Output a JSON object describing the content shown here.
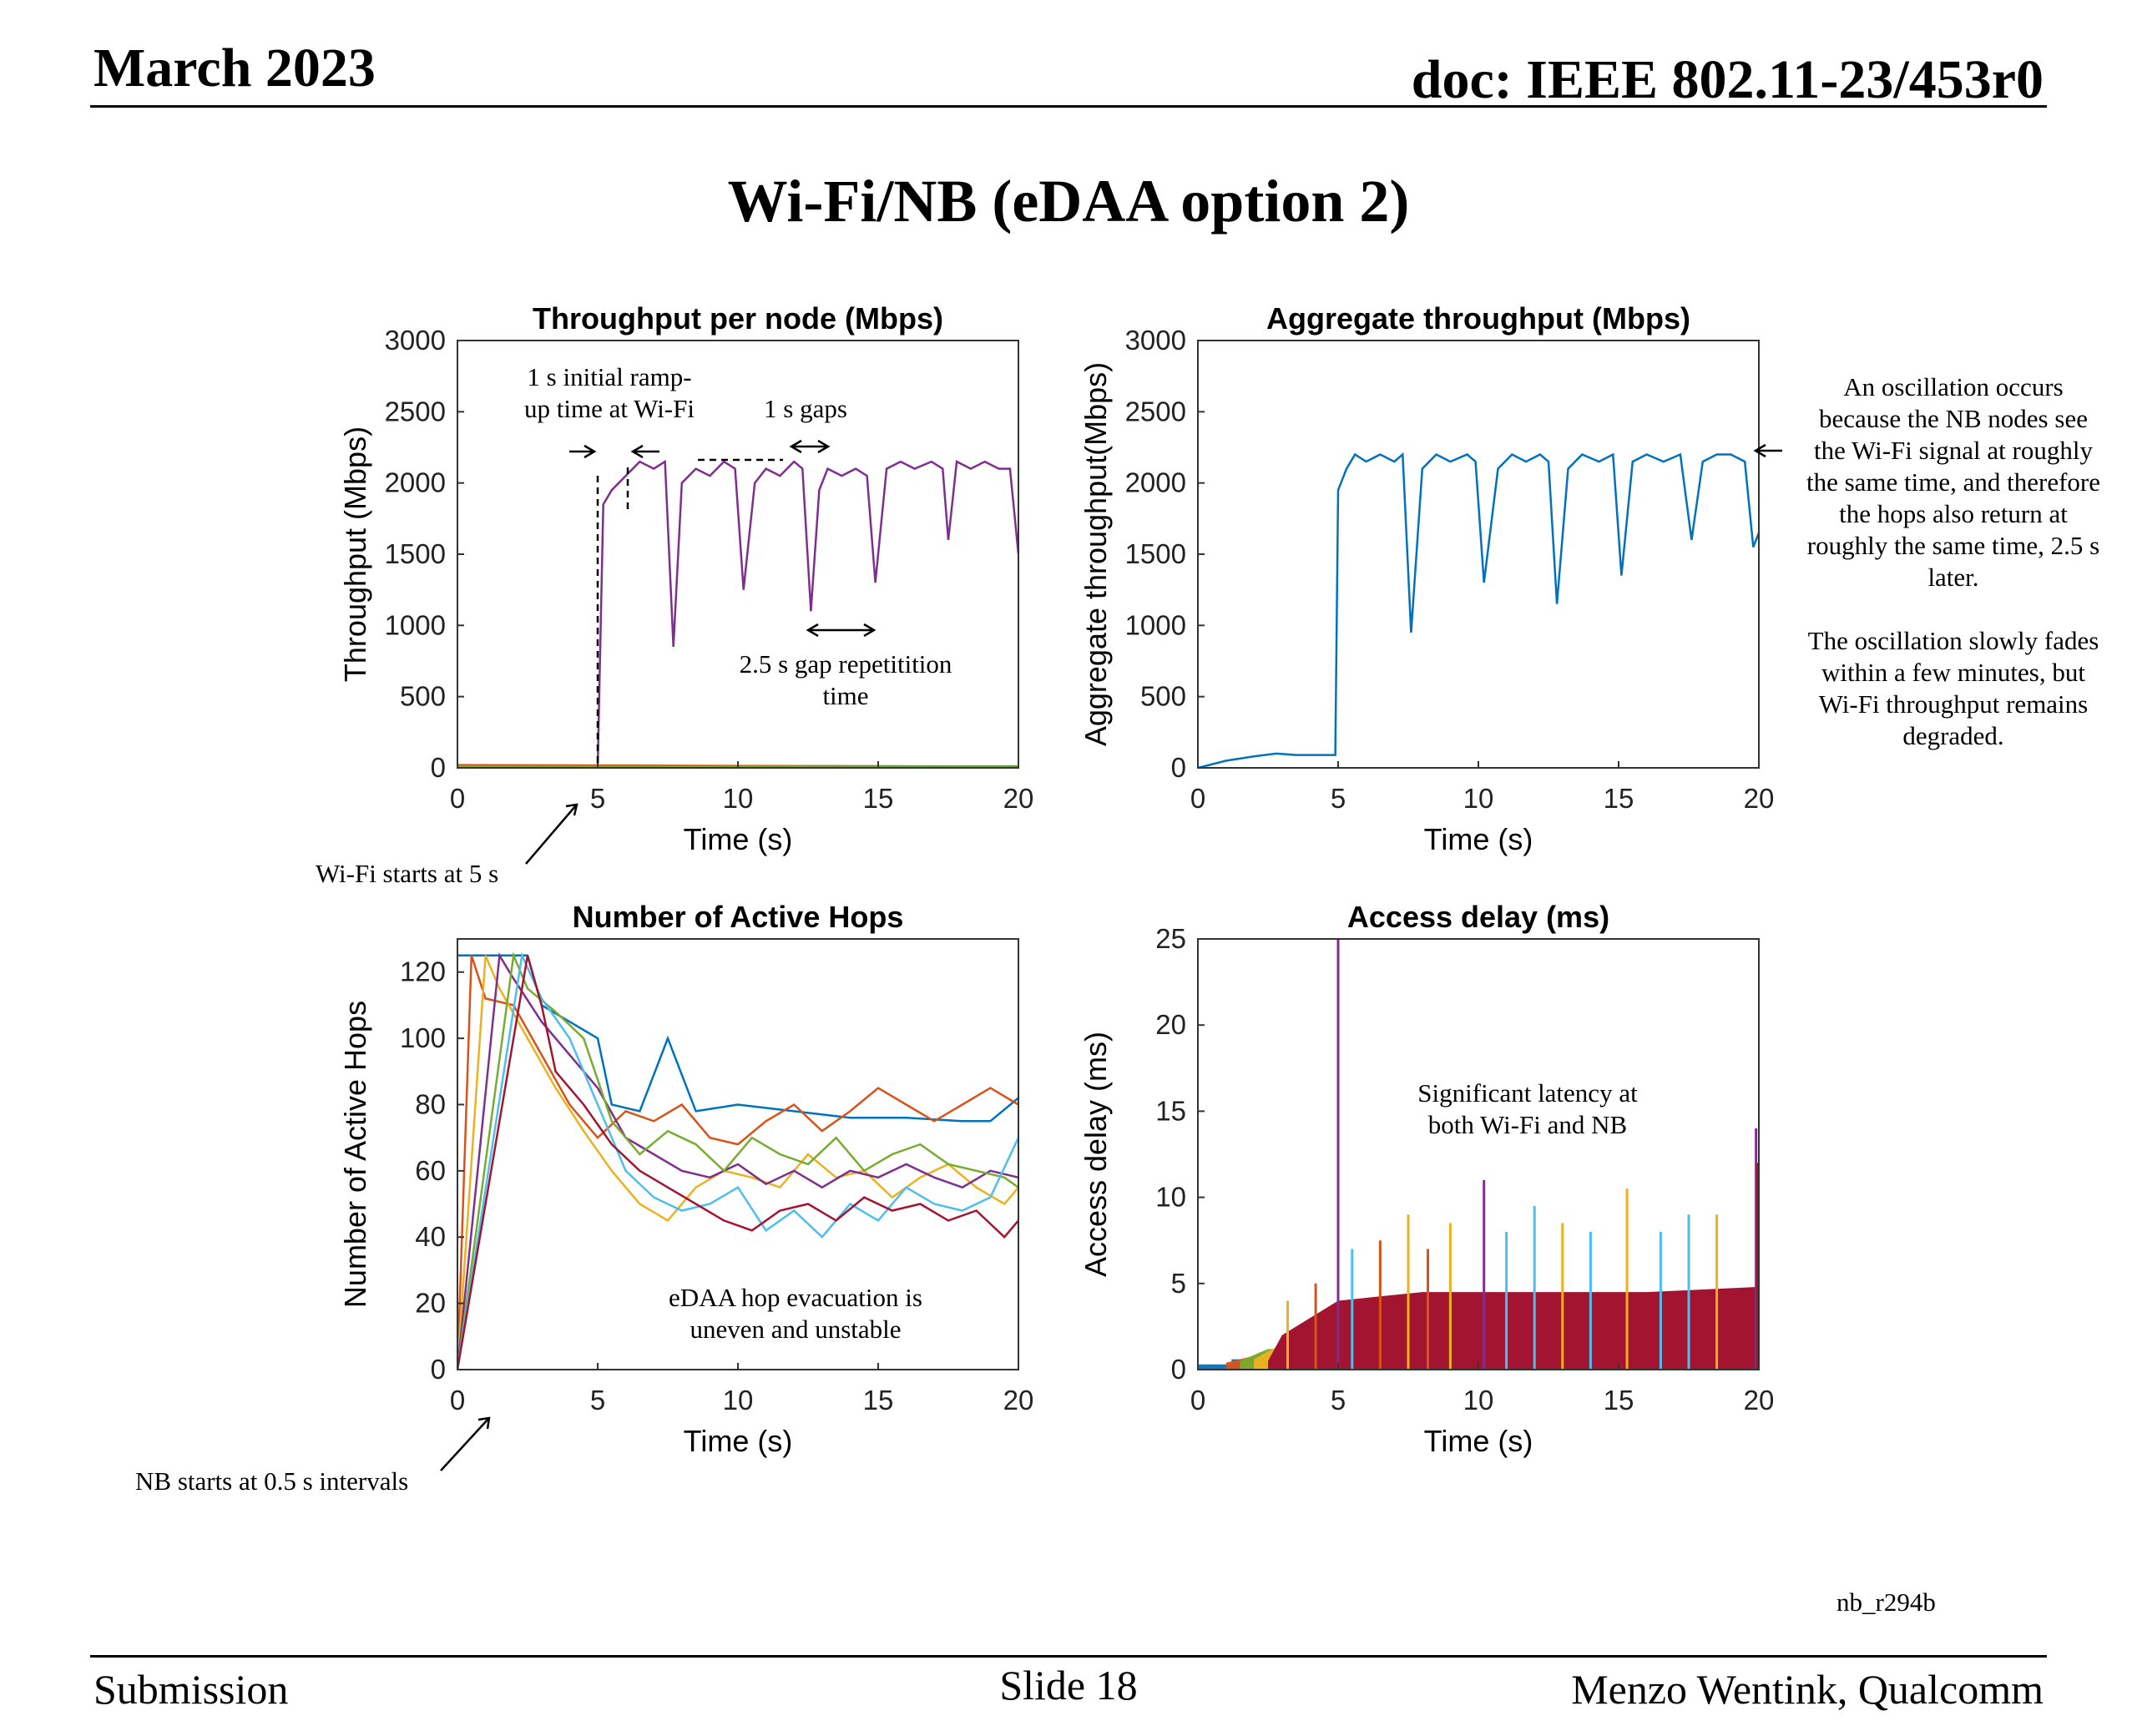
{
  "header": {
    "date": "March 2023",
    "doc": "doc: IEEE 802.11-23/453r0"
  },
  "slide_title": "Wi-Fi/NB (eDAA option 2)",
  "footer": {
    "left": "Submission",
    "center": "Slide 18",
    "right": "Menzo Wentink, Qualcomm"
  },
  "figure_tag": "nb_r294b",
  "colors": [
    "#0072BD",
    "#D95319",
    "#EDB120",
    "#7E2F8E",
    "#77AC30",
    "#4DBEEE",
    "#A2142F"
  ],
  "annotations": {
    "ramp": [
      "1 s initial ramp-",
      "up time at Wi-Fi"
    ],
    "gaps": "1 s gaps",
    "repetition": [
      "2.5 s gap repetitition",
      "time"
    ],
    "wifi_start": "Wi-Fi starts at 5 s",
    "nb_start": "NB starts at 0.5 s intervals",
    "evacuation": [
      "eDAA hop evacuation is",
      "uneven and unstable"
    ],
    "latency": [
      "Significant latency at",
      "both Wi-Fi and NB"
    ],
    "oscillation": [
      "An oscillation occurs",
      "because the NB nodes see",
      "the Wi-Fi signal at roughly",
      "the same time, and therefore",
      "the hops also return at",
      "roughly the same time, 2.5 s",
      "later.",
      "",
      "The oscillation slowly fades",
      "within a few minutes, but",
      "Wi-Fi throughput remains",
      "degraded."
    ]
  },
  "chart_data": [
    {
      "type": "line",
      "title": "Throughput per node (Mbps)",
      "xlabel": "Time (s)",
      "ylabel": "Throughput (Mbps)",
      "xlim": [
        0,
        20
      ],
      "ylim": [
        0,
        3000
      ],
      "xticks": [
        0,
        5,
        10,
        15,
        20
      ],
      "yticks": [
        0,
        500,
        1000,
        1500,
        2000,
        2500,
        3000
      ],
      "series": [
        {
          "color": "#7E2F8E",
          "x": [
            0,
            4.9,
            5.0,
            5.2,
            5.5,
            6.0,
            6.5,
            7.0,
            7.4,
            7.7,
            8.0,
            8.5,
            9.0,
            9.5,
            9.9,
            10.2,
            10.6,
            11.0,
            11.5,
            12.0,
            12.3,
            12.6,
            12.9,
            13.2,
            13.7,
            14.2,
            14.6,
            14.9,
            15.3,
            15.8,
            16.3,
            16.9,
            17.3,
            17.5,
            17.8,
            18.3,
            18.8,
            19.3,
            19.7,
            20.0
          ],
          "y": [
            0,
            0,
            0,
            1850,
            1950,
            2050,
            2150,
            2100,
            2150,
            850,
            2000,
            2100,
            2050,
            2150,
            2100,
            1250,
            2000,
            2100,
            2050,
            2150,
            2100,
            1100,
            1950,
            2100,
            2050,
            2100,
            2050,
            1300,
            2100,
            2150,
            2100,
            2150,
            2100,
            1600,
            2150,
            2100,
            2150,
            2100,
            2100,
            1500
          ]
        },
        {
          "color": "#0072BD",
          "x": [
            0,
            20
          ],
          "y": [
            15,
            10
          ]
        },
        {
          "color": "#D95319",
          "x": [
            0,
            20
          ],
          "y": [
            20,
            8
          ]
        },
        {
          "color": "#77AC30",
          "x": [
            0,
            20
          ],
          "y": [
            10,
            6
          ]
        }
      ]
    },
    {
      "type": "line",
      "title": "Aggregate throughput (Mbps)",
      "xlabel": "Time (s)",
      "ylabel": "Aggregate throughput(Mbps)",
      "xlim": [
        0,
        20
      ],
      "ylim": [
        0,
        3000
      ],
      "xticks": [
        0,
        5,
        10,
        15,
        20
      ],
      "yticks": [
        0,
        500,
        1000,
        1500,
        2000,
        2500,
        3000
      ],
      "series": [
        {
          "color": "#0072BD",
          "x": [
            0,
            1,
            2,
            2.8,
            3.5,
            4.9,
            5.0,
            5.3,
            5.6,
            6.0,
            6.5,
            7.0,
            7.3,
            7.6,
            8.0,
            8.5,
            9.0,
            9.6,
            9.9,
            10.2,
            10.7,
            11.2,
            11.7,
            12.2,
            12.5,
            12.8,
            13.2,
            13.7,
            14.3,
            14.8,
            15.1,
            15.5,
            16.0,
            16.6,
            17.2,
            17.6,
            18.0,
            18.5,
            19.0,
            19.5,
            19.8,
            20.0
          ],
          "y": [
            0,
            50,
            80,
            100,
            90,
            90,
            1950,
            2100,
            2200,
            2150,
            2200,
            2150,
            2200,
            950,
            2100,
            2200,
            2150,
            2200,
            2150,
            1300,
            2100,
            2200,
            2150,
            2200,
            2150,
            1150,
            2100,
            2200,
            2150,
            2200,
            1350,
            2150,
            2200,
            2150,
            2200,
            1600,
            2150,
            2200,
            2200,
            2150,
            1550,
            1650
          ]
        }
      ]
    },
    {
      "type": "line",
      "title": "Number of Active Hops",
      "xlabel": "Time (s)",
      "ylabel": "Number of Active Hops",
      "xlim": [
        0,
        20
      ],
      "ylim": [
        0,
        130
      ],
      "xticks": [
        0,
        5,
        10,
        15,
        20
      ],
      "yticks": [
        0,
        20,
        40,
        60,
        80,
        100,
        120
      ],
      "series": [
        {
          "color": "#0072BD",
          "x": [
            0,
            2.5,
            3,
            4,
            5,
            5.5,
            6.5,
            7.5,
            8.5,
            10,
            12,
            14,
            16,
            18,
            19,
            20
          ],
          "y": [
            125,
            125,
            110,
            105,
            100,
            80,
            78,
            100,
            78,
            80,
            78,
            76,
            76,
            75,
            75,
            82
          ]
        },
        {
          "color": "#D95319",
          "x": [
            0,
            0.5,
            1,
            2,
            3,
            4,
            5,
            6,
            7,
            8,
            9,
            10,
            11,
            12,
            13,
            14,
            15,
            16,
            17,
            18,
            19,
            20
          ],
          "y": [
            0,
            125,
            112,
            110,
            95,
            80,
            70,
            78,
            75,
            80,
            70,
            68,
            75,
            80,
            72,
            78,
            85,
            80,
            75,
            80,
            85,
            80
          ]
        },
        {
          "color": "#EDB120",
          "x": [
            0,
            1,
            1.5,
            2.5,
            3.5,
            4.5,
            5.5,
            6.5,
            7.5,
            8.5,
            9.5,
            10.5,
            11.5,
            12.5,
            13.5,
            14.5,
            15.5,
            16.5,
            17.5,
            18.5,
            19.5,
            20
          ],
          "y": [
            0,
            125,
            115,
            100,
            85,
            72,
            60,
            50,
            45,
            55,
            60,
            58,
            55,
            65,
            58,
            60,
            52,
            58,
            62,
            55,
            50,
            55
          ]
        },
        {
          "color": "#7E2F8E",
          "x": [
            0,
            1.5,
            2,
            3,
            4,
            5,
            6,
            7,
            8,
            9,
            10,
            11,
            12,
            13,
            14,
            15,
            16,
            17,
            18,
            19,
            20
          ],
          "y": [
            0,
            125,
            118,
            105,
            95,
            85,
            70,
            65,
            60,
            58,
            62,
            56,
            60,
            55,
            60,
            58,
            62,
            58,
            55,
            60,
            58
          ]
        },
        {
          "color": "#77AC30",
          "x": [
            0,
            2,
            2.5,
            3.5,
            4.5,
            5.5,
            6.5,
            7.5,
            8.5,
            9.5,
            10.5,
            11.5,
            12.5,
            13.5,
            14.5,
            15.5,
            16.5,
            17.5,
            18.5,
            19.5,
            20
          ],
          "y": [
            0,
            125,
            115,
            108,
            100,
            75,
            65,
            72,
            68,
            60,
            70,
            65,
            62,
            70,
            60,
            65,
            68,
            62,
            60,
            58,
            55
          ]
        },
        {
          "color": "#4DBEEE",
          "x": [
            0,
            2.3,
            3,
            4,
            5,
            6,
            7,
            8,
            9,
            10,
            11,
            12,
            13,
            14,
            15,
            16,
            17,
            18,
            19,
            20
          ],
          "y": [
            0,
            125,
            112,
            100,
            80,
            60,
            52,
            48,
            50,
            55,
            42,
            48,
            40,
            50,
            45,
            55,
            50,
            48,
            52,
            70
          ]
        },
        {
          "color": "#A2142F",
          "x": [
            0,
            2.5,
            3,
            3.5,
            4.5,
            5.5,
            6.5,
            7.5,
            8.5,
            9.5,
            10.5,
            11.5,
            12.5,
            13.5,
            14.5,
            15.5,
            16.5,
            17.5,
            18.5,
            19.5,
            20
          ],
          "y": [
            0,
            125,
            110,
            90,
            80,
            68,
            60,
            55,
            50,
            45,
            42,
            48,
            50,
            45,
            52,
            48,
            50,
            45,
            48,
            40,
            45
          ]
        }
      ]
    },
    {
      "type": "line",
      "title": "Access delay (ms)",
      "xlabel": "Time (s)",
      "ylabel": "Access delay (ms)",
      "xlim": [
        0,
        20
      ],
      "ylim": [
        0,
        25
      ],
      "xticks": [
        0,
        5,
        10,
        15,
        20
      ],
      "yticks": [
        0,
        5,
        10,
        15,
        20,
        25
      ],
      "bands": [
        {
          "color": "#0072BD",
          "x": [
            0,
            1.2,
            1.2,
            20
          ],
          "y": [
            0.3,
            0.3,
            0.6,
            0.6
          ]
        },
        {
          "color": "#D95319",
          "x": [
            1.0,
            2.0,
            2.2,
            20
          ],
          "y": [
            0.4,
            0.8,
            1.0,
            1.0
          ]
        },
        {
          "color": "#77AC30",
          "x": [
            1.5,
            2.5,
            20
          ],
          "y": [
            0.5,
            1.2,
            1.2
          ]
        },
        {
          "color": "#EDB120",
          "x": [
            2.0,
            3.0,
            20
          ],
          "y": [
            0.6,
            1.5,
            1.5
          ]
        },
        {
          "color": "#A2142F",
          "x": [
            2.5,
            3.0,
            4.0,
            5.0,
            8.0,
            12.0,
            16.0,
            20.0
          ],
          "y": [
            0.5,
            2.0,
            3.0,
            4.0,
            4.5,
            4.5,
            4.5,
            4.8
          ]
        }
      ],
      "spikes": [
        {
          "color": "#7E2F8E",
          "x": 5.0,
          "y": 25
        },
        {
          "color": "#7E2F8E",
          "x": 19.9,
          "y": 14
        },
        {
          "color": "#A2142F",
          "x": 19.95,
          "y": 12
        },
        {
          "color": "#7E2F8E",
          "x": 10.2,
          "y": 11
        },
        {
          "color": "#EDB120",
          "x": 15.3,
          "y": 10.5
        },
        {
          "color": "#4DBEEE",
          "x": 12.0,
          "y": 9.5
        },
        {
          "color": "#EDB120",
          "x": 7.5,
          "y": 9.0
        },
        {
          "color": "#4DBEEE",
          "x": 17.5,
          "y": 9.0
        },
        {
          "color": "#EDB120",
          "x": 9.0,
          "y": 8.5
        },
        {
          "color": "#4DBEEE",
          "x": 14.0,
          "y": 8.0
        },
        {
          "color": "#D95319",
          "x": 6.5,
          "y": 7.5
        },
        {
          "color": "#4DBEEE",
          "x": 11.0,
          "y": 8.0
        },
        {
          "color": "#EDB120",
          "x": 13.0,
          "y": 8.5
        },
        {
          "color": "#4DBEEE",
          "x": 16.5,
          "y": 8.0
        },
        {
          "color": "#EDB120",
          "x": 18.5,
          "y": 9.0
        },
        {
          "color": "#D95319",
          "x": 8.2,
          "y": 7.0
        },
        {
          "color": "#4DBEEE",
          "x": 5.5,
          "y": 7.0
        },
        {
          "color": "#EDB120",
          "x": 3.2,
          "y": 4.0
        },
        {
          "color": "#D95319",
          "x": 4.2,
          "y": 5.0
        }
      ]
    }
  ]
}
